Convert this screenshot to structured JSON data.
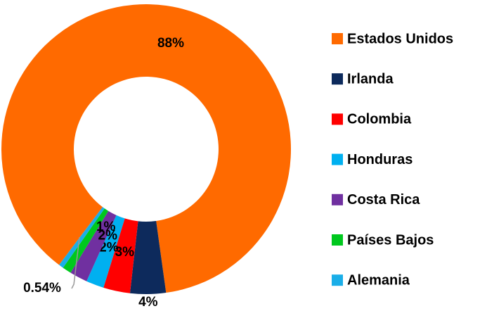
{
  "chart_data": {
    "type": "donut",
    "categories": [
      "Estados Unidos",
      "Irlanda",
      "Colombia",
      "Honduras",
      "Costa Rica",
      "Países Bajos",
      "Alemania"
    ],
    "values": [
      88,
      4,
      3,
      2,
      2,
      1,
      0.54
    ],
    "value_labels": [
      "88%",
      "4%",
      "3%",
      "2%",
      "2%",
      "1%",
      "0.54%"
    ],
    "colors": [
      "#ff6a00",
      "#0d2a5c",
      "#ff0000",
      "#00b0f0",
      "#7030a0",
      "#00c81e",
      "#1aaee8"
    ],
    "legend": "right"
  }
}
